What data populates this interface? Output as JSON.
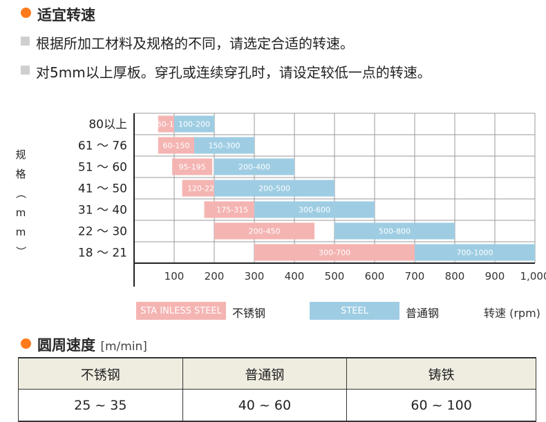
{
  "section1": {
    "title": "适宜转速",
    "lines": [
      "根据所加工材料及规格的不同，请选定合适的转速。",
      "对5mm以上厚板。穿孔或连续穿孔时，请设定较低一点的转速。"
    ]
  },
  "chart_data": {
    "type": "bar",
    "orientation": "horizontal-range",
    "ylabel": "规格（mm）",
    "xlabel": "转速 (rpm)",
    "xlim": [
      0,
      1000
    ],
    "x_ticks": [
      "100",
      "200",
      "300",
      "400",
      "500",
      "600",
      "700",
      "800",
      "900",
      "1,000"
    ],
    "categories": [
      "80以上",
      "61 ～ 76",
      "51 ～ 60",
      "41 ～ 50",
      "31 ～ 40",
      "22 ～ 30",
      "18 ～ 21"
    ],
    "series": [
      {
        "name": "STA INLESS STEEL",
        "color": "#f4b4b2",
        "ranges": [
          [
            60,
            120
          ],
          [
            60,
            150
          ],
          [
            95,
            195
          ],
          [
            120,
            225
          ],
          [
            175,
            315
          ],
          [
            200,
            450
          ],
          [
            300,
            700
          ]
        ],
        "labels": [
          "60-120",
          "60-150",
          "95-195",
          "120-225",
          "175-315",
          "200-450",
          "300-700"
        ]
      },
      {
        "name": "STEEL",
        "color": "#9ecde3",
        "ranges": [
          [
            100,
            200
          ],
          [
            150,
            300
          ],
          [
            200,
            400
          ],
          [
            200,
            500
          ],
          [
            300,
            600
          ],
          [
            500,
            800
          ],
          [
            700,
            1000
          ]
        ],
        "labels": [
          "100-200",
          "150-300",
          "200-400",
          "200-500",
          "300-600",
          "500-800",
          "700-1000"
        ]
      }
    ],
    "legend": [
      {
        "box": "STA INLESS STEEL",
        "text": "不锈钢"
      },
      {
        "box": "STEEL",
        "text": "普通钢"
      }
    ],
    "grid": true
  },
  "section2": {
    "title": "圆周速度",
    "unit": "[m/min]",
    "headers": [
      "不锈钢",
      "普通钢",
      "铸铁"
    ],
    "values": [
      "25 ~ 35",
      "40 ~ 60",
      "60 ~ 100"
    ]
  }
}
